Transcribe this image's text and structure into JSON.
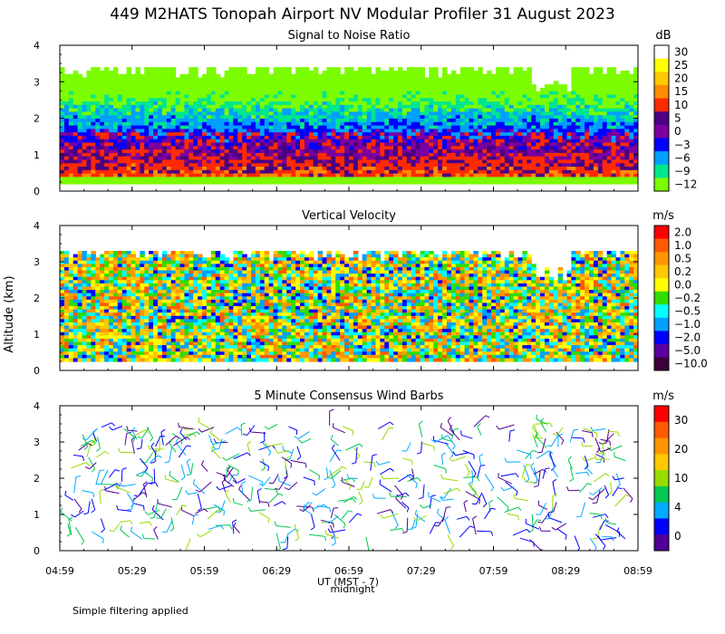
{
  "chart_data": {
    "title": "449 M2HATS Tonopah Airport NV Modular Profiler 31 August 2023",
    "ylabel": "Altitude (km)",
    "xlabel": "UT (MST - 7)",
    "midnight_label": "midnight",
    "footnote": "Simple filtering applied",
    "x_ticks": [
      "04:59",
      "05:29",
      "05:59",
      "06:29",
      "06:59",
      "07:29",
      "07:59",
      "08:29",
      "08:59"
    ],
    "y_ticks": [
      "0",
      "1",
      "2",
      "3",
      "4"
    ],
    "ylim": [
      0,
      4
    ],
    "panels": [
      {
        "type": "heatmap",
        "title": "Signal to Noise Ratio",
        "unit": "dB",
        "colorbar_labels": [
          "30",
          "25",
          "20",
          "15",
          "10",
          "5",
          "0",
          "−3",
          "−6",
          "−9",
          "−12"
        ],
        "colorbar_colors": [
          "#ffffff",
          "#ffff00",
          "#ffc800",
          "#ff8c00",
          "#ff2a00",
          "#4b0082",
          "#7b00a0",
          "#0000ff",
          "#00a0ff",
          "#00e68c",
          "#7cfc00"
        ],
        "data_height_km": [
          0.2,
          3.4
        ]
      },
      {
        "type": "heatmap",
        "title": "Vertical Velocity",
        "unit": "m/s",
        "colorbar_labels": [
          "2.0",
          "1.0",
          "0.5",
          "0.2",
          "0.0",
          "−0.2",
          "−0.5",
          "−1.0",
          "−2.0",
          "−5.0",
          "−10.0"
        ],
        "colorbar_colors": [
          "#ff0000",
          "#ff5a00",
          "#ff9600",
          "#ffc800",
          "#ffff00",
          "#32dc00",
          "#00ffff",
          "#00a0ff",
          "#0000ff",
          "#5a00a0",
          "#3c003c"
        ],
        "data_height_km": [
          0.25,
          3.3
        ]
      },
      {
        "type": "scatter",
        "title": "5 Minute Consensus Wind Barbs",
        "unit": "m/s",
        "colorbar_labels": [
          "30",
          "20",
          "10",
          "4",
          "0"
        ],
        "colorbar_colors": [
          "#ff0000",
          "#ff5a00",
          "#ff9600",
          "#ffc800",
          "#96dc00",
          "#00c850",
          "#00aaff",
          "#0000ff",
          "#500096"
        ],
        "data_height_km": [
          0.3,
          3.5
        ]
      }
    ]
  }
}
